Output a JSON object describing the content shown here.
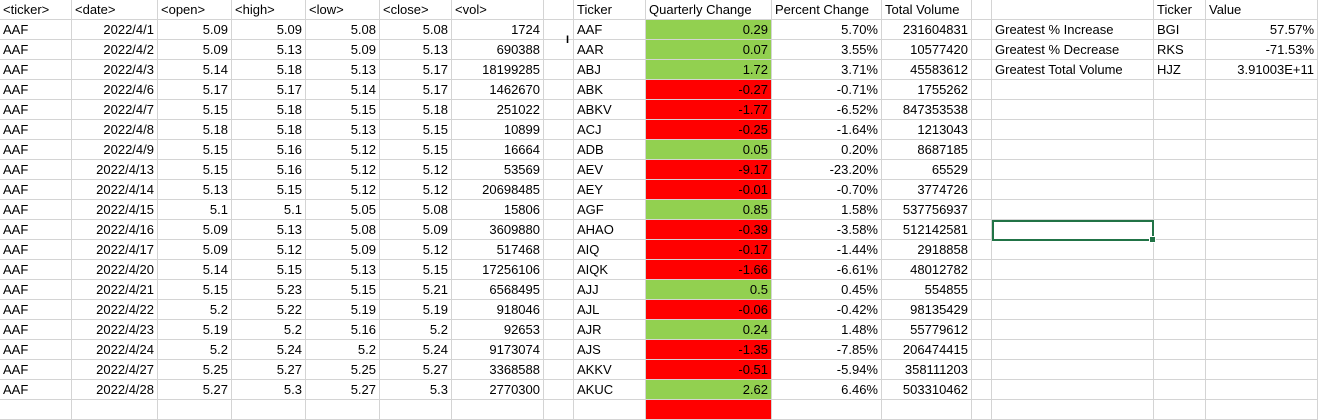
{
  "headers": [
    "<ticker>",
    "<date>",
    "<open>",
    "<high>",
    "<low>",
    "<close>",
    "<vol>",
    "",
    "Ticker",
    "Quarterly Change",
    "Percent Change",
    "Total Volume",
    "",
    "",
    "Ticker",
    "Value",
    ""
  ],
  "raw_rows": [
    [
      "AAF",
      "2022/4/1",
      "5.09",
      "5.09",
      "5.08",
      "5.08",
      "1724"
    ],
    [
      "AAF",
      "2022/4/2",
      "5.09",
      "5.13",
      "5.09",
      "5.13",
      "690388"
    ],
    [
      "AAF",
      "2022/4/3",
      "5.14",
      "5.18",
      "5.13",
      "5.17",
      "18199285"
    ],
    [
      "AAF",
      "2022/4/6",
      "5.17",
      "5.17",
      "5.14",
      "5.17",
      "1462670"
    ],
    [
      "AAF",
      "2022/4/7",
      "5.15",
      "5.18",
      "5.15",
      "5.18",
      "251022"
    ],
    [
      "AAF",
      "2022/4/8",
      "5.18",
      "5.18",
      "5.13",
      "5.15",
      "10899"
    ],
    [
      "AAF",
      "2022/4/9",
      "5.15",
      "5.16",
      "5.12",
      "5.15",
      "16664"
    ],
    [
      "AAF",
      "2022/4/13",
      "5.15",
      "5.16",
      "5.12",
      "5.12",
      "53569"
    ],
    [
      "AAF",
      "2022/4/14",
      "5.13",
      "5.15",
      "5.12",
      "5.12",
      "20698485"
    ],
    [
      "AAF",
      "2022/4/15",
      "5.1",
      "5.1",
      "5.05",
      "5.08",
      "15806"
    ],
    [
      "AAF",
      "2022/4/16",
      "5.09",
      "5.13",
      "5.08",
      "5.09",
      "3609880"
    ],
    [
      "AAF",
      "2022/4/17",
      "5.09",
      "5.12",
      "5.09",
      "5.12",
      "517468"
    ],
    [
      "AAF",
      "2022/4/20",
      "5.14",
      "5.15",
      "5.13",
      "5.15",
      "17256106"
    ],
    [
      "AAF",
      "2022/4/21",
      "5.15",
      "5.23",
      "5.15",
      "5.21",
      "6568495"
    ],
    [
      "AAF",
      "2022/4/22",
      "5.2",
      "5.22",
      "5.19",
      "5.19",
      "918046"
    ],
    [
      "AAF",
      "2022/4/23",
      "5.19",
      "5.2",
      "5.16",
      "5.2",
      "92653"
    ],
    [
      "AAF",
      "2022/4/24",
      "5.2",
      "5.24",
      "5.2",
      "5.24",
      "9173074"
    ],
    [
      "AAF",
      "2022/4/27",
      "5.25",
      "5.27",
      "5.25",
      "5.27",
      "3368588"
    ],
    [
      "AAF",
      "2022/4/28",
      "5.27",
      "5.3",
      "5.27",
      "5.3",
      "2770300"
    ]
  ],
  "summary_rows": [
    {
      "ticker": "AAF",
      "change": "0.29",
      "pct": "5.70%",
      "vol": "231604831",
      "status": "positive"
    },
    {
      "ticker": "AAR",
      "change": "0.07",
      "pct": "3.55%",
      "vol": "10577420",
      "status": "positive"
    },
    {
      "ticker": "ABJ",
      "change": "1.72",
      "pct": "3.71%",
      "vol": "45583612",
      "status": "positive"
    },
    {
      "ticker": "ABK",
      "change": "-0.27",
      "pct": "-0.71%",
      "vol": "1755262",
      "status": "negative"
    },
    {
      "ticker": "ABKV",
      "change": "-1.77",
      "pct": "-6.52%",
      "vol": "847353538",
      "status": "negative"
    },
    {
      "ticker": "ACJ",
      "change": "-0.25",
      "pct": "-1.64%",
      "vol": "1213043",
      "status": "negative"
    },
    {
      "ticker": "ADB",
      "change": "0.05",
      "pct": "0.20%",
      "vol": "8687185",
      "status": "positive"
    },
    {
      "ticker": "AEV",
      "change": "-9.17",
      "pct": "-23.20%",
      "vol": "65529",
      "status": "negative"
    },
    {
      "ticker": "AEY",
      "change": "-0.01",
      "pct": "-0.70%",
      "vol": "3774726",
      "status": "negative"
    },
    {
      "ticker": "AGF",
      "change": "0.85",
      "pct": "1.58%",
      "vol": "537756937",
      "status": "positive"
    },
    {
      "ticker": "AHAO",
      "change": "-0.39",
      "pct": "-3.58%",
      "vol": "512142581",
      "status": "negative"
    },
    {
      "ticker": "AIQ",
      "change": "-0.17",
      "pct": "-1.44%",
      "vol": "2918858",
      "status": "negative"
    },
    {
      "ticker": "AIQK",
      "change": "-1.66",
      "pct": "-6.61%",
      "vol": "48012782",
      "status": "negative"
    },
    {
      "ticker": "AJJ",
      "change": "0.5",
      "pct": "0.45%",
      "vol": "554855",
      "status": "positive"
    },
    {
      "ticker": "AJL",
      "change": "-0.06",
      "pct": "-0.42%",
      "vol": "98135429",
      "status": "negative"
    },
    {
      "ticker": "AJR",
      "change": "0.24",
      "pct": "1.48%",
      "vol": "55779612",
      "status": "positive"
    },
    {
      "ticker": "AJS",
      "change": "-1.35",
      "pct": "-7.85%",
      "vol": "206474415",
      "status": "negative"
    },
    {
      "ticker": "AKKV",
      "change": "-0.51",
      "pct": "-5.94%",
      "vol": "358111203",
      "status": "negative"
    },
    {
      "ticker": "AKUC",
      "change": "2.62",
      "pct": "6.46%",
      "vol": "503310462",
      "status": "positive"
    }
  ],
  "next_row_status": "negative",
  "greatest": [
    {
      "label": "Greatest % Increase",
      "ticker": "BGI",
      "value": "57.57%"
    },
    {
      "label": "Greatest % Decrease",
      "ticker": "RKS",
      "value": "-71.53%"
    },
    {
      "label": "Greatest Total Volume",
      "ticker": "HJZ",
      "value": "3.91003E+11"
    }
  ],
  "colors": {
    "positive": "#92d050",
    "negative": "#ff0000",
    "selection": "#217346",
    "gridline": "#d4d4d4"
  },
  "cursor_glyph": "I"
}
